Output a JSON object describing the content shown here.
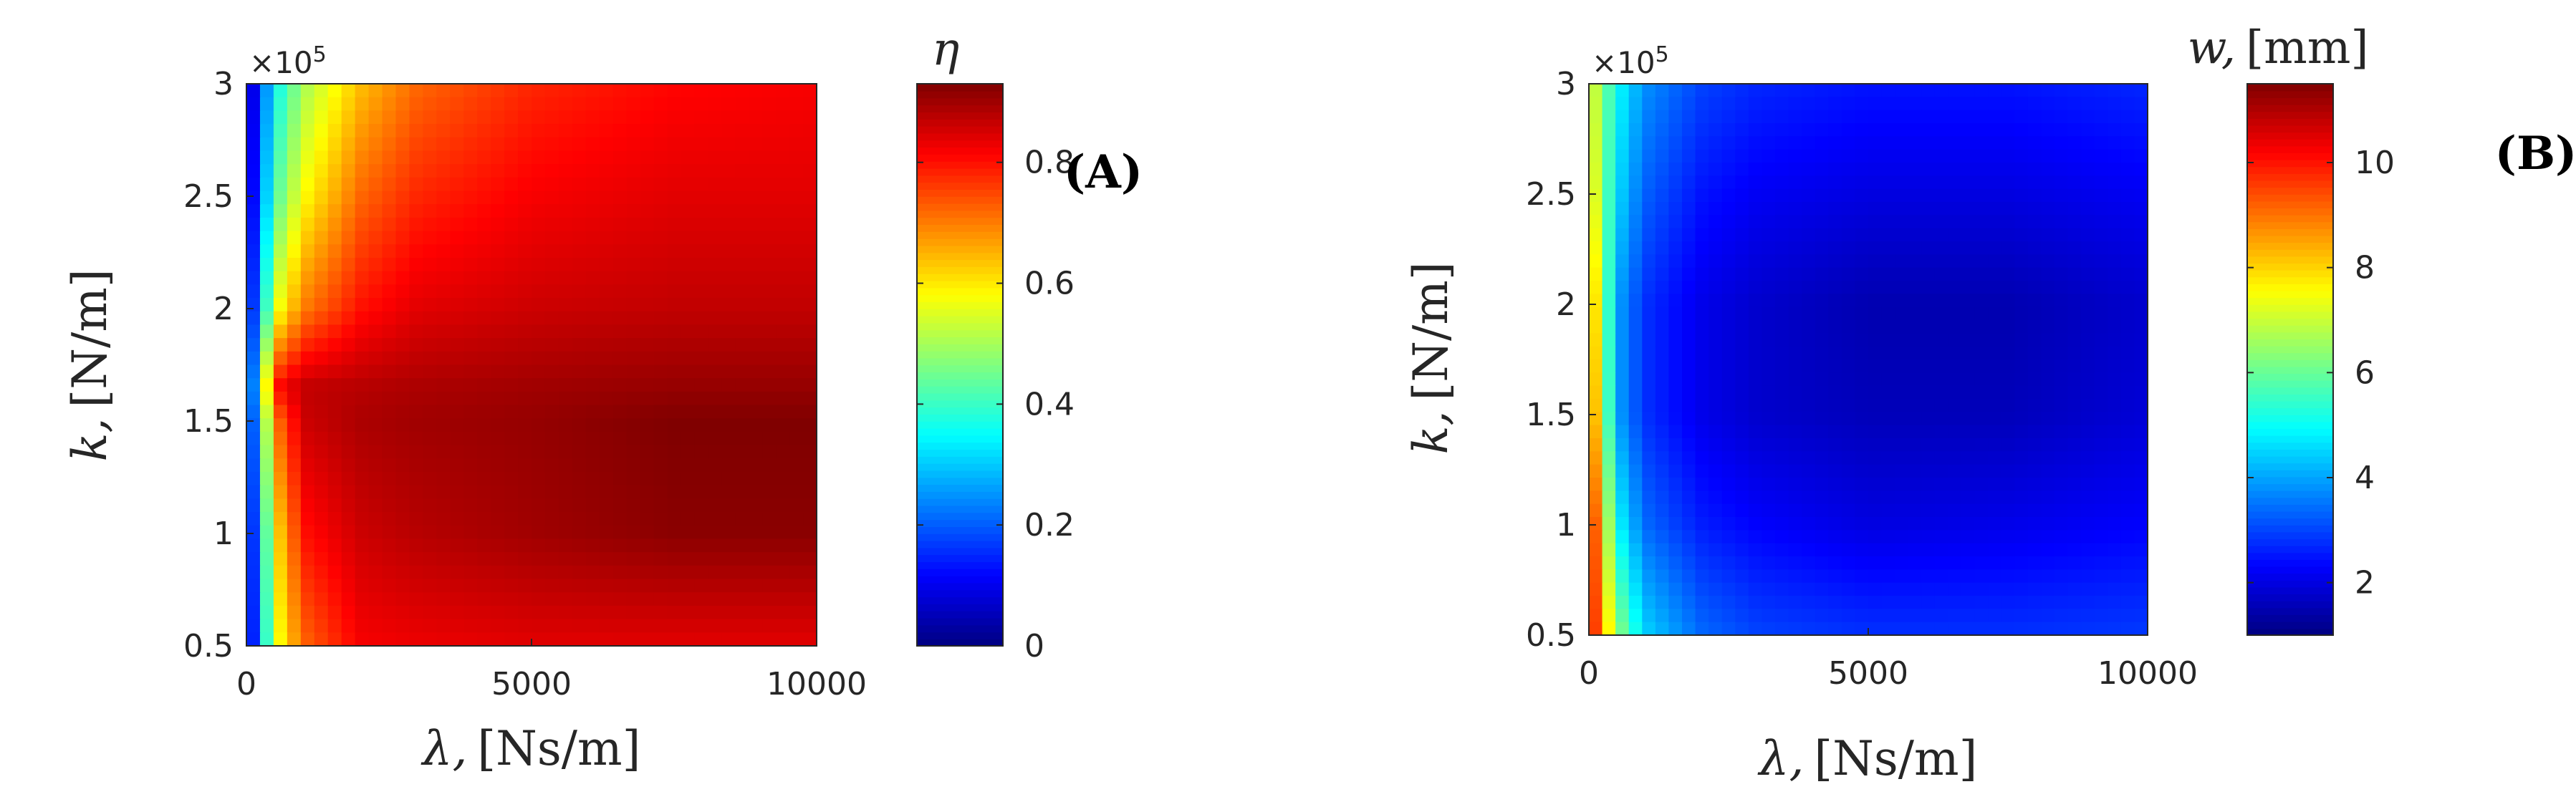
{
  "chart_data": [
    {
      "type": "heatmap",
      "panel_label": "(A)",
      "xlabel_sym": "λ,",
      "xlabel_unit": "[Ns/m]",
      "ylabel_sym": "k,",
      "ylabel_unit": "[N/m]",
      "exponent_base": "×10",
      "exponent_power": "5",
      "colorbar_label": "η",
      "xlim": [
        0,
        10000
      ],
      "ylim": [
        50000,
        300000
      ],
      "xticks": [
        0,
        5000,
        10000
      ],
      "xtick_labels": [
        "0",
        "5000",
        "10000"
      ],
      "yticks": [
        50000,
        100000,
        150000,
        200000,
        250000,
        300000
      ],
      "ytick_labels": [
        "0.5",
        "1",
        "1.5",
        "2",
        "2.5",
        "3"
      ],
      "clim": [
        0,
        0.93
      ],
      "cticks": [
        0,
        0.2,
        0.4,
        0.6,
        0.8
      ],
      "ctick_labels": [
        "0",
        "0.2",
        "0.4",
        "0.6",
        "0.8"
      ],
      "colormap": "jet",
      "grid": false,
      "x_samples": [
        0,
        500,
        1000,
        2000,
        3000,
        5000,
        7500,
        10000
      ],
      "y_samples": [
        50000,
        100000,
        150000,
        165000,
        200000,
        250000,
        300000
      ],
      "z_grid": [
        [
          0.02,
          0.55,
          0.72,
          0.82,
          0.83,
          0.84,
          0.84,
          0.84
        ],
        [
          0.03,
          0.6,
          0.8,
          0.86,
          0.88,
          0.9,
          0.92,
          0.92
        ],
        [
          0.05,
          0.7,
          0.86,
          0.89,
          0.9,
          0.91,
          0.93,
          0.93
        ],
        [
          0.06,
          0.8,
          0.87,
          0.88,
          0.89,
          0.9,
          0.91,
          0.91
        ],
        [
          0.05,
          0.55,
          0.7,
          0.8,
          0.84,
          0.86,
          0.87,
          0.87
        ],
        [
          0.03,
          0.42,
          0.58,
          0.72,
          0.78,
          0.82,
          0.84,
          0.84
        ],
        [
          0.02,
          0.35,
          0.5,
          0.64,
          0.72,
          0.78,
          0.81,
          0.82
        ]
      ]
    },
    {
      "type": "heatmap",
      "panel_label": "(B)",
      "xlabel_sym": "λ,",
      "xlabel_unit": "[Ns/m]",
      "ylabel_sym": "k,",
      "ylabel_unit": "[N/m]",
      "exponent_base": "×10",
      "exponent_power": "5",
      "colorbar_label_sym": "w,",
      "colorbar_label_unit": "[mm]",
      "xlim": [
        0,
        10000
      ],
      "ylim": [
        50000,
        300000
      ],
      "xticks": [
        0,
        5000,
        10000
      ],
      "xtick_labels": [
        "0",
        "5000",
        "10000"
      ],
      "yticks": [
        50000,
        100000,
        150000,
        200000,
        250000,
        300000
      ],
      "ytick_labels": [
        "0.5",
        "1",
        "1.5",
        "2",
        "2.5",
        "3"
      ],
      "clim": [
        1,
        11.5
      ],
      "cticks": [
        2,
        4,
        6,
        8,
        10
      ],
      "ctick_labels": [
        "2",
        "4",
        "6",
        "8",
        "10"
      ],
      "colormap": "jet",
      "grid": false,
      "x_samples": [
        0,
        500,
        1000,
        2000,
        3000,
        5000,
        7500,
        10000
      ],
      "y_samples": [
        50000,
        100000,
        150000,
        200000,
        250000,
        300000
      ],
      "z_grid": [
        [
          10.5,
          6.5,
          4.5,
          3.4,
          3.0,
          2.8,
          2.8,
          2.9
        ],
        [
          10.5,
          5.0,
          3.4,
          2.6,
          2.3,
          2.0,
          2.1,
          2.3
        ],
        [
          9.5,
          4.0,
          2.8,
          2.1,
          1.8,
          1.6,
          1.6,
          1.9
        ],
        [
          9.0,
          4.0,
          2.8,
          2.1,
          1.8,
          1.5,
          1.5,
          1.8
        ],
        [
          8.0,
          4.6,
          3.3,
          2.5,
          2.2,
          2.0,
          2.0,
          2.2
        ],
        [
          7.5,
          5.0,
          3.8,
          3.0,
          2.7,
          2.5,
          2.5,
          2.7
        ]
      ]
    }
  ]
}
